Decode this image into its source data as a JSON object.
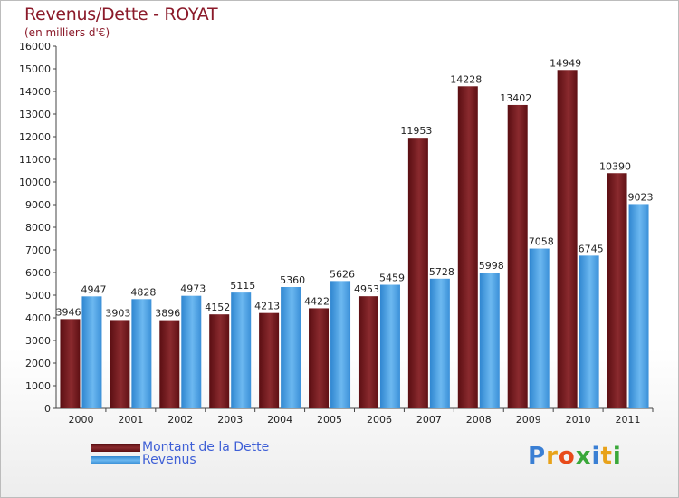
{
  "chart_data": {
    "type": "bar",
    "title": "Revenus/Dette - ROYAT",
    "subtitle": "(en milliers d'€)",
    "categories": [
      "2000",
      "2001",
      "2002",
      "2003",
      "2004",
      "2005",
      "2006",
      "2007",
      "2008",
      "2009",
      "2010",
      "2011"
    ],
    "series": [
      {
        "name": "Montant de la Dette",
        "color": "#7a1e22",
        "values": [
          3946,
          3903,
          3896,
          4152,
          4213,
          4422,
          4953,
          11953,
          14228,
          13402,
          14949,
          10390
        ]
      },
      {
        "name": "Revenus",
        "color": "#4aa3e8",
        "values": [
          4947,
          4828,
          4973,
          5115,
          5360,
          5626,
          5459,
          5728,
          5998,
          7058,
          6745,
          9023
        ]
      }
    ],
    "ylim": [
      0,
      16000
    ],
    "yticks": [
      0,
      1000,
      2000,
      3000,
      4000,
      5000,
      6000,
      7000,
      8000,
      9000,
      10000,
      11000,
      12000,
      13000,
      14000,
      15000,
      16000
    ],
    "grid": false,
    "legend_position": "bottom-left"
  },
  "logo": {
    "text": "Proxiti",
    "colors": [
      "#3a7fd4",
      "#e8a21a",
      "#e84a1a",
      "#3aa83a",
      "#3a7fd4",
      "#e8a21a",
      "#3aa83a"
    ]
  }
}
